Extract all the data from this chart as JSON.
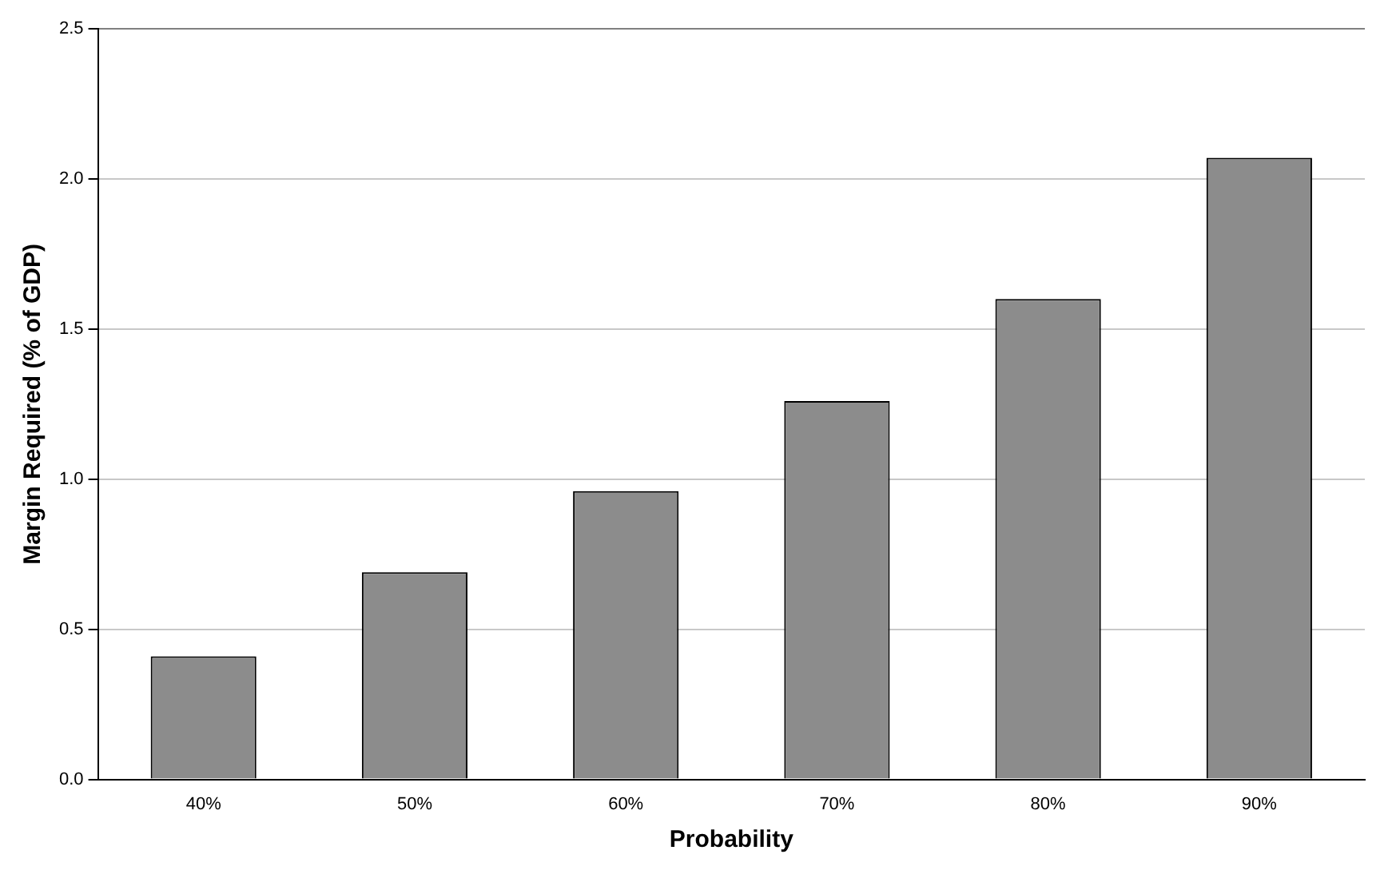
{
  "chart_data": {
    "type": "bar",
    "xlabel": "Probability",
    "ylabel": "Margin Required (% of GDP)",
    "categories": [
      "40%",
      "50%",
      "60%",
      "70%",
      "80%",
      "90%"
    ],
    "series": [
      {
        "color": "#8c8c8c",
        "values": [
          0.41,
          0.69,
          0.96,
          1.26,
          1.6,
          2.07
        ]
      }
    ],
    "ylim": [
      0,
      2.5
    ],
    "yticks": [
      {
        "value": 0,
        "label": "0.0"
      },
      0.5,
      {
        "value": 1,
        "label": "1.0"
      },
      1.5,
      {
        "value": 2,
        "label": "2.0"
      },
      2.5
    ],
    "grid": "y",
    "legend": false
  }
}
